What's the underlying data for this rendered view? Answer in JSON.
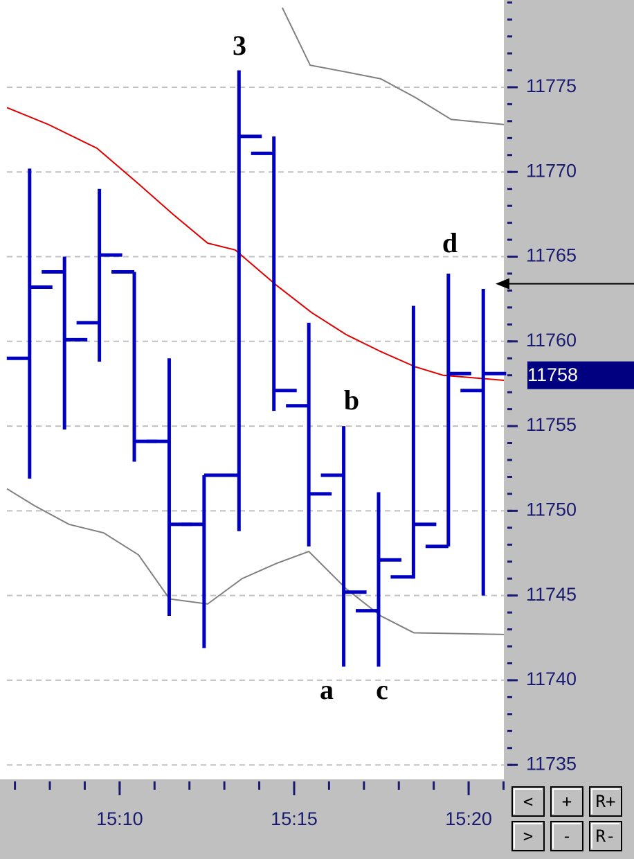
{
  "chart_data": {
    "type": "ohlc",
    "x": [
      7.42,
      8.42,
      9.42,
      10.42,
      11.42,
      12.42,
      13.42,
      14.42,
      15.42,
      16.42,
      17.42,
      18.42,
      19.42,
      20.42
    ],
    "open": [
      11759.0,
      11764.1,
      11761.1,
      11764.1,
      11754.1,
      11749.2,
      11752.1,
      11771.1,
      11756.2,
      11752.1,
      11744.1,
      11746.1,
      11747.9,
      11757.1
    ],
    "high": [
      11770.2,
      11765.0,
      11769.0,
      11764.1,
      11759.0,
      11752.1,
      11776.0,
      11772.1,
      11761.1,
      11755.0,
      11751.1,
      11762.1,
      11764.0,
      11763.1
    ],
    "low": [
      11751.9,
      11754.8,
      11758.8,
      11752.9,
      11743.8,
      11741.9,
      11748.8,
      11755.9,
      11747.9,
      11740.8,
      11740.8,
      11746.0,
      11747.9,
      11745.0
    ],
    "close": [
      11763.2,
      11760.1,
      11765.1,
      11754.1,
      11749.2,
      11752.1,
      11772.1,
      11757.1,
      11751.0,
      11745.2,
      11747.1,
      11749.2,
      11758.1,
      11758.1
    ],
    "color": "#0000c0",
    "lines": [
      {
        "color": "#e00000",
        "x": [
          6.77,
          7.96,
          9.35,
          10.54,
          11.53,
          12.52,
          13.31,
          14.5,
          15.5,
          16.49,
          17.48,
          18.47,
          19.27,
          21.01
        ],
        "values": [
          11773.8,
          11772.8,
          11771.4,
          11769.3,
          11767.5,
          11765.8,
          11765.4,
          11763.3,
          11761.7,
          11760.4,
          11759.4,
          11758.5,
          11758.0,
          11757.7
        ]
      },
      {
        "color": "#808080",
        "x": [
          14.66,
          15.46,
          16.49,
          17.48,
          18.47,
          19.5,
          21.01
        ],
        "values": [
          11779.7,
          11776.3,
          11775.9,
          11775.5,
          11774.4,
          11773.1,
          11772.8
        ]
      },
      {
        "color": "#808080",
        "x": [
          6.77,
          7.56,
          8.55,
          9.54,
          10.54,
          11.43,
          12.52,
          13.51,
          14.5,
          15.42,
          16.49,
          17.48,
          18.43,
          21.01
        ],
        "values": [
          11751.3,
          11750.3,
          11749.2,
          11748.7,
          11747.4,
          11744.8,
          11744.5,
          11746.0,
          11746.9,
          11747.6,
          11745.4,
          11743.8,
          11742.8,
          11742.7
        ]
      }
    ],
    "xlim": [
      6.77,
      21.01
    ],
    "xticks": [
      {
        "value": 10,
        "label": "15:10"
      },
      {
        "value": 15,
        "label": "15:15"
      },
      {
        "value": 20,
        "label": "15:20"
      }
    ],
    "xminor_ticks": [
      7,
      8,
      9,
      10,
      11,
      12,
      13,
      14,
      15,
      16,
      17,
      18,
      19,
      20,
      21
    ],
    "ylim": [
      11734.15,
      11780.15
    ],
    "yticks": [
      11735,
      11740,
      11745,
      11750,
      11755,
      11760,
      11765,
      11770,
      11775
    ],
    "yminor_ticks": [
      11735,
      11736,
      11737,
      11738,
      11739,
      11740,
      11741,
      11742,
      11743,
      11744,
      11745,
      11746,
      11747,
      11748,
      11749,
      11750,
      11751,
      11752,
      11753,
      11754,
      11755,
      11756,
      11757,
      11758,
      11759,
      11760,
      11761,
      11762,
      11763,
      11764,
      11765,
      11766,
      11767,
      11768,
      11769,
      11770,
      11771,
      11772,
      11773,
      11774,
      11775,
      11776,
      11777,
      11778,
      11779,
      11780
    ],
    "grid": true,
    "last_price": 11758,
    "arrow_level": 11763.4,
    "annotations": [
      "3",
      "b",
      "a",
      "c",
      "d"
    ]
  },
  "buttons": [
    [
      "<",
      "+",
      "R+"
    ],
    [
      ">",
      "-",
      "R-"
    ]
  ]
}
